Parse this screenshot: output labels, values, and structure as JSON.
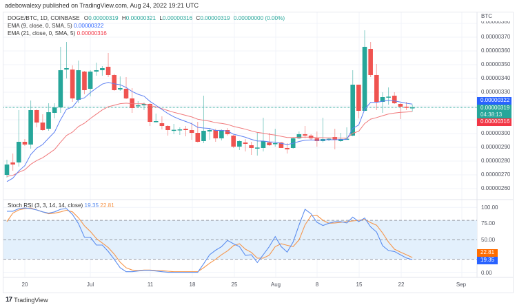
{
  "published": "adebowalexy published on TradingView.com, Aug 24, 2022 19:21 UTC",
  "symbol": {
    "title": "DOGE/BTC, 1D, COINBASE",
    "o_label": "O",
    "o": "0.00000319",
    "h_label": "H",
    "h": "0.00000321",
    "l_label": "L",
    "l": "0.00000316",
    "c_label": "C",
    "c": "0.00000319",
    "change": "0.00000000 (0.00%)"
  },
  "indicators": {
    "ema9": {
      "label": "EMA (9, close, 0, SMA, 5)",
      "value": "0.00000322",
      "color": "#5b7ff2"
    },
    "ema21": {
      "label": "EMA (21, close, 0, SMA, 5)",
      "value": "0.00000316",
      "color": "#f0787a"
    },
    "stoch": {
      "label": "Stoch RSI (3, 3, 14, 14, close)",
      "k": "19.35",
      "d": "22.81",
      "k_color": "#5b8def",
      "d_color": "#f5964c"
    }
  },
  "price_axis": {
    "currency": "BTC",
    "ticks": [
      "0.00000380",
      "0.00000370",
      "0.00000360",
      "0.00000350",
      "0.00000340",
      "0.00000330",
      "0.00000300",
      "0.00000290",
      "0.00000280",
      "0.00000270",
      "0.00000260"
    ],
    "labels": {
      "ema9": "0.00000322",
      "last": "0.00000319",
      "countdown": "04:38:13",
      "ema21": "0.00000316"
    }
  },
  "stoch_axis": {
    "ticks": [
      "100.00",
      "75.00",
      "50.00",
      "0.00"
    ],
    "k_label": "19.35",
    "d_label": "22.81",
    "bands": [
      80,
      50,
      20
    ]
  },
  "time_axis": [
    "20",
    "Jul",
    "11",
    "18",
    "25",
    "Aug",
    "8",
    "15",
    "22",
    "Sep"
  ],
  "colors": {
    "up": "#26a69a",
    "down": "#ef5350",
    "grid": "#f0f3fa",
    "band_fill": "#e3f0fc"
  },
  "chart_data": {
    "type": "candlestick",
    "first_date": "2022-06-17",
    "last_date": "2022-08-24",
    "ohlc": [
      [
        2.7e-06,
        2.81e-06,
        2.68e-06,
        2.775e-06
      ],
      [
        2.79e-06,
        2.855e-06,
        2.73e-06,
        2.775e-06
      ],
      [
        2.79e-06,
        3.17e-06,
        2.76e-06,
        2.94e-06
      ],
      [
        2.94e-06,
        2.96e-06,
        2.91e-06,
        2.92e-06
      ],
      [
        2.92e-06,
        3.24e-06,
        2.89e-06,
        3.17e-06
      ],
      [
        3.17e-06,
        3.175e-06,
        3.045e-06,
        3.08e-06
      ],
      [
        3.08e-06,
        3.14e-06,
        3.02e-06,
        3.025e-06
      ],
      [
        3.035e-06,
        3.22e-06,
        3.02e-06,
        3.155e-06
      ],
      [
        3.15e-06,
        3.22e-06,
        3.11e-06,
        3.19e-06
      ],
      [
        3.19e-06,
        3.63e-06,
        3.15e-06,
        3.46e-06
      ],
      [
        3.465e-06,
        3.665e-06,
        3.4e-06,
        3.475e-06
      ],
      [
        3.465e-06,
        3.495e-06,
        3.23e-06,
        3.255e-06
      ],
      [
        3.245e-06,
        3.53e-06,
        3.22e-06,
        3.46e-06
      ],
      [
        3.45e-06,
        3.455e-06,
        3.285e-06,
        3.315e-06
      ],
      [
        3.325e-06,
        3.46e-06,
        3.27e-06,
        3.45e-06
      ],
      [
        3.45e-06,
        3.515e-06,
        3.42e-06,
        3.46e-06
      ],
      [
        3.46e-06,
        3.49e-06,
        3.42e-06,
        3.475e-06
      ],
      [
        3.485e-06,
        3.585e-06,
        3.41e-06,
        3.425e-06
      ],
      [
        3.425e-06,
        3.435e-06,
        3.31e-06,
        3.315e-06
      ],
      [
        3.32e-06,
        3.415e-06,
        3.31e-06,
        3.33e-06
      ],
      [
        3.325e-06,
        3.41e-06,
        3.25e-06,
        3.255e-06
      ],
      [
        3.255e-06,
        3.33e-06,
        3.15e-06,
        3.185e-06
      ],
      [
        3.2e-06,
        3.235e-06,
        3.185e-06,
        3.205e-06
      ],
      [
        3.205e-06,
        3.225e-06,
        3.17e-06,
        3.215e-06
      ],
      [
        3.215e-06,
        3.22e-06,
        3.055e-06,
        3.085e-06
      ],
      [
        3.085e-06,
        3.145e-06,
        3.08e-06,
        3.09e-06
      ],
      [
        3.075e-06,
        3.125e-06,
        3.03e-06,
        3.055e-06
      ],
      [
        3.055e-06,
        3.06e-06,
        2.985e-06,
        3.025e-06
      ],
      [
        3.023e-06,
        3.07e-06,
        2.995e-06,
        3.027e-06
      ],
      [
        3.025e-06,
        3.045e-06,
        2.99e-06,
        3.03e-06
      ],
      [
        3.035e-06,
        3.055e-06,
        2.98e-06,
        3.025e-06
      ],
      [
        3.025e-06,
        3.08e-06,
        2.955e-06,
        3.005e-06
      ],
      [
        3.005e-06,
        3.085e-06,
        2.935e-06,
        2.94e-06
      ],
      [
        2.945e-06,
        3.275e-06,
        2.93e-06,
        3.02e-06
      ],
      [
        3.015e-06,
        3.035e-06,
        2.955e-06,
        3.025e-06
      ],
      [
        3.025e-06,
        3.035e-06,
        2.94e-06,
        2.965e-06
      ],
      [
        2.965e-06,
        3.03e-06,
        2.95e-06,
        3.025e-06
      ],
      [
        3.025e-06,
        3.04e-06,
        2.985e-06,
        2.995e-06
      ],
      [
        2.985e-06,
        2.99e-06,
        2.895e-06,
        2.905e-06
      ],
      [
        2.905e-06,
        2.95e-06,
        2.88e-06,
        2.945e-06
      ],
      [
        2.935e-06,
        2.96e-06,
        2.87e-06,
        2.925e-06
      ],
      [
        2.915e-06,
        2.94e-06,
        2.845e-06,
        2.895e-06
      ],
      [
        2.895e-06,
        3.005e-06,
        2.84e-06,
        2.898e-06
      ],
      [
        2.895e-06,
        3.115e-06,
        2.87e-06,
        2.945e-06
      ],
      [
        2.935e-06,
        3.005e-06,
        2.91e-06,
        2.915e-06
      ],
      [
        2.925e-06,
        3.035e-06,
        2.905e-06,
        2.93e-06
      ],
      [
        2.935e-06,
        2.94e-06,
        2.895e-06,
        2.895e-06
      ],
      [
        2.895e-06,
        2.93e-06,
        2.855e-06,
        2.885e-06
      ],
      [
        2.895e-06,
        2.97e-06,
        2.89e-06,
        2.965e-06
      ],
      [
        2.965e-06,
        3.015e-06,
        2.96e-06,
        2.995e-06
      ],
      [
        2.995e-06,
        3.055e-06,
        2.965e-06,
        2.985e-06
      ],
      [
        2.985e-06,
        2.995e-06,
        2.955e-06,
        2.965e-06
      ],
      [
        2.965e-06,
        3.015e-06,
        2.905e-06,
        2.945e-06
      ],
      [
        2.945e-06,
        3.115e-06,
        2.935e-06,
        2.96e-06
      ],
      [
        2.96e-06,
        2.97e-06,
        2.945e-06,
        2.962e-06
      ],
      [
        2.975e-06,
        3.035e-06,
        2.885e-06,
        2.955e-06
      ],
      [
        2.945e-06,
        3.005e-06,
        2.94e-06,
        2.96e-06
      ],
      [
        2.958e-06,
        3.045e-06,
        2.955e-06,
        2.962e-06
      ],
      [
        2.985e-06,
        3.46e-06,
        2.98e-06,
        3.355e-06
      ],
      [
        3.355e-06,
        3.355e-06,
        3.11e-06,
        3.165e-06
      ],
      [
        3.165e-06,
        3.75e-06,
        3.165e-06,
        3.63e-06
      ],
      [
        3.615e-06,
        3.665e-06,
        3.41e-06,
        3.425e-06
      ],
      [
        3.425e-06,
        3.505e-06,
        3.17e-06,
        3.23e-06
      ],
      [
        3.23e-06,
        3.3e-06,
        3.15e-06,
        3.265e-06
      ],
      [
        3.265e-06,
        3.335e-06,
        3.21e-06,
        3.268e-06
      ],
      [
        3.275e-06,
        3.3e-06,
        3.215e-06,
        3.22e-06
      ],
      [
        3.215e-06,
        3.22e-06,
        3.105e-06,
        3.195e-06
      ],
      [
        3.195e-06,
        3.23e-06,
        3.17e-06,
        3.187e-06
      ],
      [
        3.19e-06,
        3.21e-06,
        3.16e-06,
        3.19e-06
      ]
    ],
    "stoch_k": [
      94,
      94,
      98,
      99,
      98,
      96,
      93,
      91,
      93,
      97,
      98,
      89,
      75,
      54,
      54,
      42,
      42,
      32,
      20,
      7,
      1,
      1,
      2,
      3,
      3,
      2,
      1,
      0,
      0,
      0,
      0,
      0,
      0,
      13,
      27,
      34,
      39.5,
      49,
      44,
      39.5,
      26,
      27,
      15,
      27,
      39.5,
      55,
      39.5,
      31,
      46.5,
      73,
      97,
      90,
      77,
      72,
      75.5,
      78,
      78,
      76,
      85,
      78,
      83.6,
      70,
      62,
      41,
      33.5,
      32,
      27,
      22,
      19.35
    ],
    "stoch_d": [
      78,
      91,
      96,
      98,
      99,
      96,
      93,
      90,
      91,
      93,
      95.6,
      93,
      84,
      71.6,
      62.8,
      52,
      45,
      38,
      28,
      15.6,
      7,
      3.5,
      2.8,
      3.5,
      3.5,
      2.8,
      2.5,
      1.7,
      1,
      1,
      1,
      1,
      1,
      7,
      14,
      20,
      27,
      33,
      41,
      44,
      35.6,
      30.6,
      21.8,
      21.8,
      26.4,
      39.5,
      44,
      41.5,
      39.5,
      50,
      73,
      87,
      87.6,
      80,
      75.5,
      76,
      77,
      78,
      79,
      80,
      81.5,
      76.5,
      72.5,
      60.6,
      46.5,
      35.6,
      31,
      27,
      22.81
    ],
    "price_range": [
      2.55e-06,
      3.82e-06
    ],
    "stoch_range": [
      0,
      100
    ]
  },
  "footer": {
    "brand": "TradingView"
  }
}
